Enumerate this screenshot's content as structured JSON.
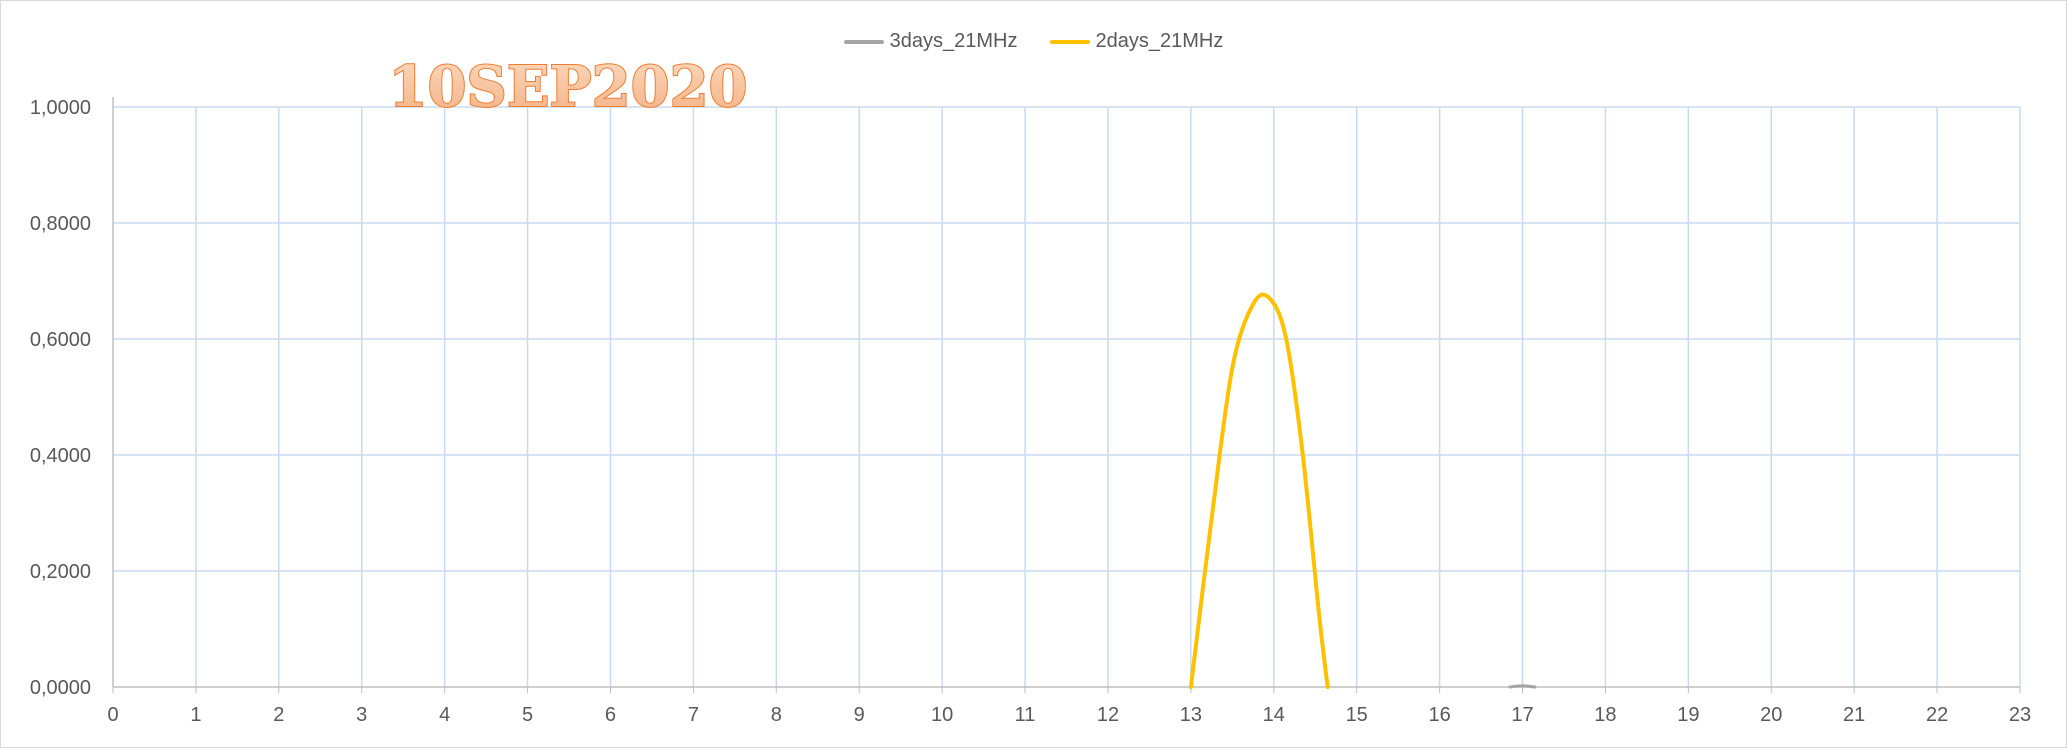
{
  "chart_data": {
    "type": "line",
    "title": "10SEP2020",
    "xlabel": "",
    "ylabel": "",
    "xlim": [
      0,
      23
    ],
    "ylim": [
      0,
      1
    ],
    "x_ticks": [
      "0",
      "1",
      "2",
      "3",
      "4",
      "5",
      "6",
      "7",
      "8",
      "9",
      "10",
      "11",
      "12",
      "13",
      "14",
      "15",
      "16",
      "17",
      "18",
      "19",
      "20",
      "21",
      "22",
      "23"
    ],
    "y_ticks": [
      "0,0000",
      "0,2000",
      "0,4000",
      "0,6000",
      "0,8000",
      "1,0000"
    ],
    "grid": true,
    "legend_position": "top",
    "series": [
      {
        "name": "3days_21MHz",
        "color": "#a5a5a5",
        "x": [
          16.85,
          17.0,
          17.15
        ],
        "y": [
          0.0,
          0.002,
          0.0
        ]
      },
      {
        "name": "2days_21MHz",
        "color": "#ffc000",
        "x": [
          13.0,
          13.25,
          13.5,
          13.75,
          13.95,
          14.15,
          14.35,
          14.55,
          14.65
        ],
        "y": [
          0.0,
          0.29,
          0.55,
          0.66,
          0.67,
          0.6,
          0.4,
          0.12,
          0.0
        ]
      }
    ]
  },
  "colors": {
    "grid": "#c9daf0",
    "axis_text": "#595959",
    "title_fill": "#f4b183",
    "title_stroke": "#ed7d31"
  }
}
